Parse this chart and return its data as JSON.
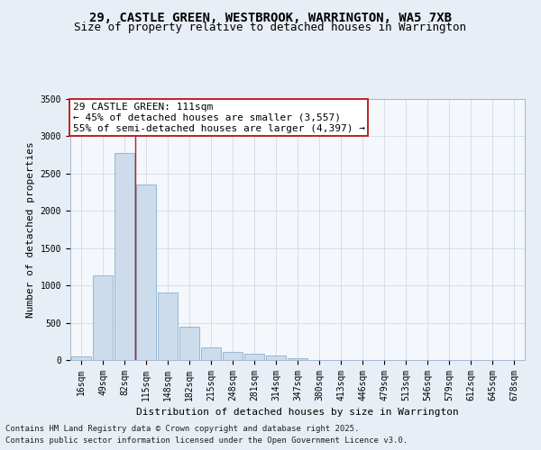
{
  "title1": "29, CASTLE GREEN, WESTBROOK, WARRINGTON, WA5 7XB",
  "title2": "Size of property relative to detached houses in Warrington",
  "xlabel": "Distribution of detached houses by size in Warrington",
  "ylabel": "Number of detached properties",
  "categories": [
    "16sqm",
    "49sqm",
    "82sqm",
    "115sqm",
    "148sqm",
    "182sqm",
    "215sqm",
    "248sqm",
    "281sqm",
    "314sqm",
    "347sqm",
    "380sqm",
    "413sqm",
    "446sqm",
    "479sqm",
    "513sqm",
    "546sqm",
    "579sqm",
    "612sqm",
    "645sqm",
    "678sqm"
  ],
  "values": [
    50,
    1130,
    2770,
    2350,
    900,
    450,
    175,
    110,
    90,
    60,
    30,
    5,
    5,
    5,
    0,
    0,
    0,
    0,
    0,
    0,
    0
  ],
  "bar_color": "#ccdcec",
  "bar_edge_color": "#8ab0cc",
  "vline_x_index": 2.5,
  "vline_color": "#bb2222",
  "annotation_text": "29 CASTLE GREEN: 111sqm\n← 45% of detached houses are smaller (3,557)\n55% of semi-detached houses are larger (4,397) →",
  "annotation_box_color": "#ffffff",
  "annotation_box_edge": "#bb2222",
  "ylim": [
    0,
    3500
  ],
  "yticks": [
    0,
    500,
    1000,
    1500,
    2000,
    2500,
    3000,
    3500
  ],
  "bg_color": "#e8eef5",
  "plot_bg": "#f4f7fb",
  "grid_color": "#c8d4e4",
  "footer1": "Contains HM Land Registry data © Crown copyright and database right 2025.",
  "footer2": "Contains public sector information licensed under the Open Government Licence v3.0.",
  "title1_fontsize": 10,
  "title2_fontsize": 9,
  "xlabel_fontsize": 8,
  "ylabel_fontsize": 8,
  "tick_fontsize": 7,
  "annotation_fontsize": 8,
  "footer_fontsize": 6.5
}
